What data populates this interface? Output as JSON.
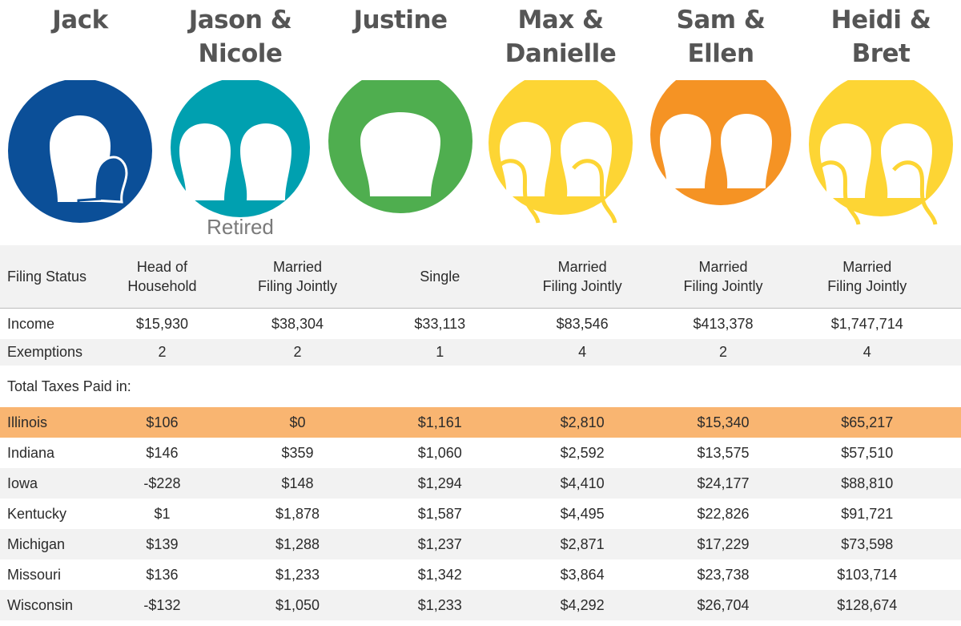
{
  "people": [
    {
      "name": "Jack",
      "color": "#0b4f98",
      "icon": "parent-with-child-icon"
    },
    {
      "name": "Jason &\nNicole",
      "color": "#00a0b0",
      "icon": "couple-icon",
      "note": "Retired"
    },
    {
      "name": "Justine",
      "color": "#4fae4f",
      "icon": "single-person-icon"
    },
    {
      "name": "Max &\nDanielle",
      "color": "#fdd534",
      "icon": "couple-with-children-icon"
    },
    {
      "name": "Sam &\nEllen",
      "color": "#f59324",
      "icon": "couple-icon"
    },
    {
      "name": "Heidi &\nBret",
      "color": "#fdd534",
      "icon": "couple-with-children-icon"
    }
  ],
  "rows": {
    "filing_status": {
      "label": "Filing Status",
      "values": [
        "Head of\nHousehold",
        "Married\nFiling Jointly",
        "Single",
        "Married\nFiling Jointly",
        "Married\nFiling Jointly",
        "Married\nFiling Jointly"
      ]
    },
    "income": {
      "label": "Income",
      "values": [
        "$15,930",
        "$38,304",
        "$33,113",
        "$83,546",
        "$413,378",
        "$1,747,714"
      ]
    },
    "exemptions": {
      "label": "Exemptions",
      "values": [
        "2",
        "2",
        "1",
        "4",
        "2",
        "4"
      ]
    }
  },
  "section_title": "Total Taxes Paid in:",
  "states": [
    {
      "name": "Illinois",
      "values": [
        "$106",
        "$0",
        "$1,161",
        "$2,810",
        "$15,340",
        "$65,217"
      ],
      "highlight": true
    },
    {
      "name": "Indiana",
      "values": [
        "$146",
        "$359",
        "$1,060",
        "$2,592",
        "$13,575",
        "$57,510"
      ]
    },
    {
      "name": "Iowa",
      "values": [
        "-$228",
        "$148",
        "$1,294",
        "$4,410",
        "$24,177",
        "$88,810"
      ]
    },
    {
      "name": "Kentucky",
      "values": [
        "$1",
        "$1,878",
        "$1,587",
        "$4,495",
        "$22,826",
        "$91,721"
      ]
    },
    {
      "name": "Michigan",
      "values": [
        "$139",
        "$1,288",
        "$1,237",
        "$2,871",
        "$17,229",
        "$73,598"
      ]
    },
    {
      "name": "Missouri",
      "values": [
        "$136",
        "$1,233",
        "$1,342",
        "$3,864",
        "$23,738",
        "$103,714"
      ]
    },
    {
      "name": "Wisconsin",
      "values": [
        "-$132",
        "$1,050",
        "$1,233",
        "$4,292",
        "$26,704",
        "$128,674"
      ]
    }
  ],
  "colors": {
    "highlight": "#f9b571",
    "stripe": "#f2f2f2"
  }
}
